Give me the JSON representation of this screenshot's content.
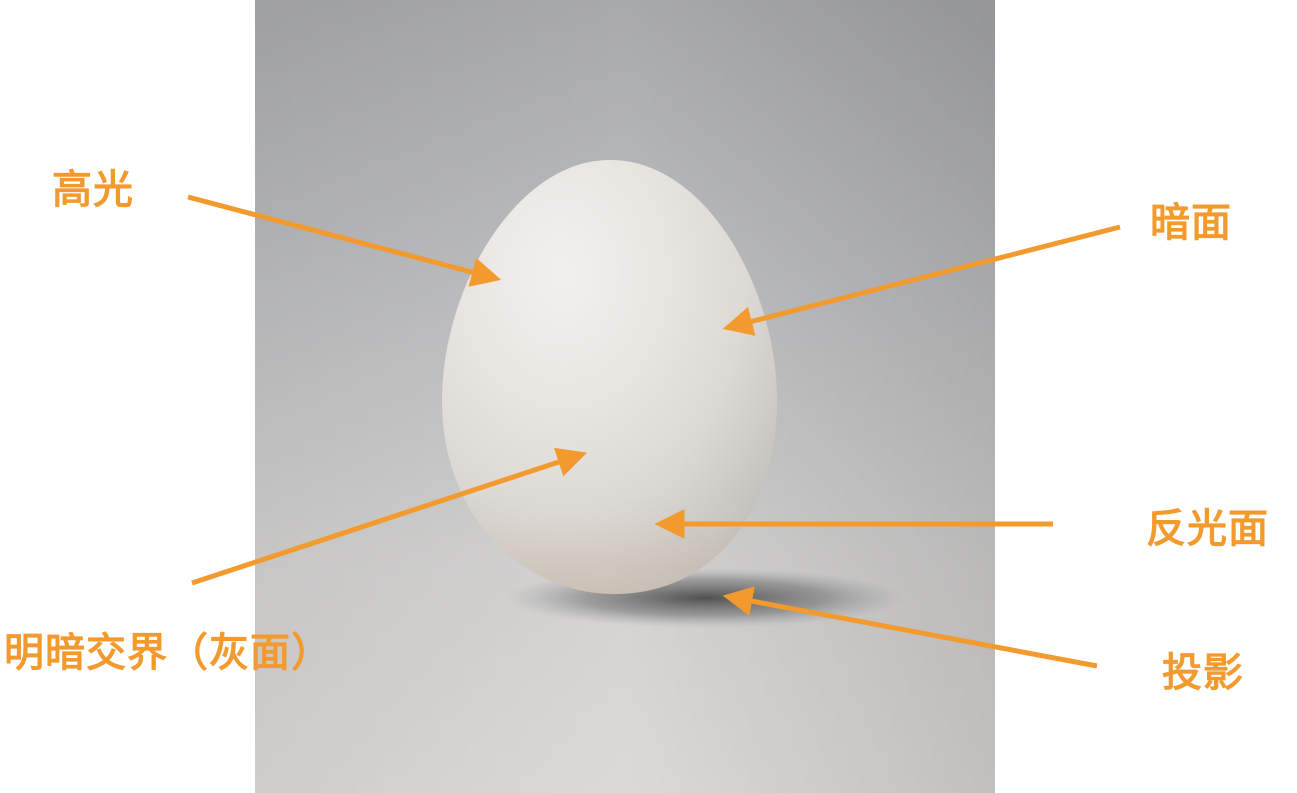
{
  "colors": {
    "accent": "#F39A2E",
    "background_top": "#a9aaad",
    "background_bottom": "#d9d7d6",
    "egg": "#e9e6e2"
  },
  "labels": {
    "highlight": "高光",
    "dark_side": "暗面",
    "reflected_light": "反光面",
    "terminator": "明暗交界（灰面）",
    "cast_shadow": "投影"
  }
}
